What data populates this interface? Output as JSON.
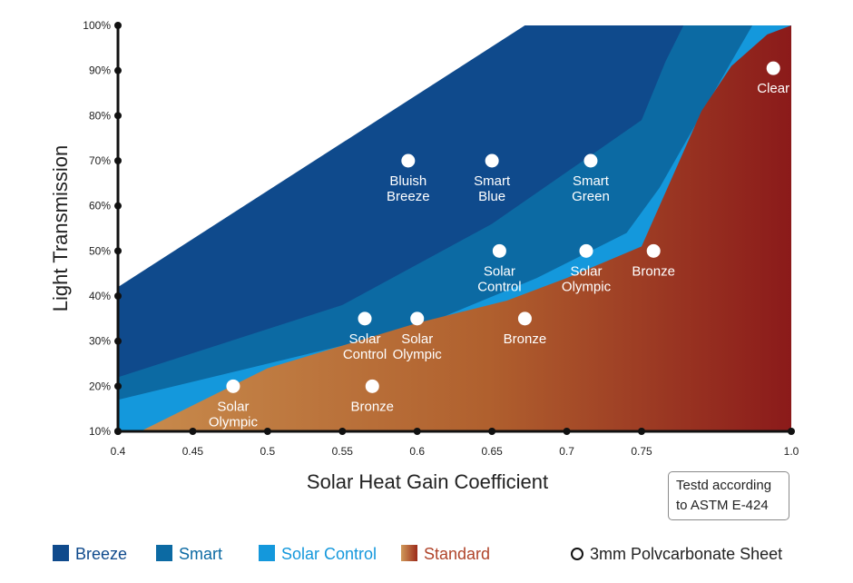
{
  "chart_data": {
    "type": "area",
    "xlabel": "Solar Heat Gain Coefficient",
    "ylabel": "Light Transmission",
    "xlim": [
      0.4,
      1.0
    ],
    "ylim": [
      10,
      100
    ],
    "xticks": [
      0.4,
      0.45,
      0.5,
      0.55,
      0.6,
      0.65,
      0.7,
      0.75,
      1.0
    ],
    "xtick_labels": [
      "0.4",
      "0.45",
      "0.5",
      "0.55",
      "0.6",
      "0.65",
      "0.7",
      "0.75",
      "1.0"
    ],
    "yticks": [
      10,
      20,
      30,
      40,
      50,
      60,
      70,
      80,
      90,
      100
    ],
    "ytick_labels": [
      "10%",
      "20%",
      "30%",
      "40%",
      "50%",
      "60%",
      "70%",
      "80%",
      "90%",
      "100%"
    ],
    "regions": [
      {
        "name": "Breeze",
        "color": "#0f4a8c",
        "boundary": [
          [
            0.4,
            42
          ],
          [
            0.672,
            100
          ],
          [
            1.0,
            100
          ]
        ]
      },
      {
        "name": "Smart",
        "color": "#0c6aa3",
        "boundary": [
          [
            0.4,
            22
          ],
          [
            0.55,
            38
          ],
          [
            0.65,
            56
          ],
          [
            0.75,
            79
          ],
          [
            0.79,
            92
          ],
          [
            0.82,
            100
          ],
          [
            1.0,
            100
          ]
        ]
      },
      {
        "name": "Solar Control",
        "color": "#1498dc",
        "boundary": [
          [
            0.4,
            17
          ],
          [
            0.5,
            25
          ],
          [
            0.6,
            33
          ],
          [
            0.68,
            44
          ],
          [
            0.74,
            54
          ],
          [
            0.78,
            64
          ],
          [
            0.9,
            92
          ],
          [
            0.935,
            100
          ],
          [
            1.0,
            100
          ]
        ]
      },
      {
        "name": "Standard",
        "color": "gradient",
        "gradient": [
          "#c78a4c",
          "#8b1a1a"
        ],
        "boundary": [
          [
            0.4,
            10
          ],
          [
            0.415,
            10
          ],
          [
            0.5,
            24
          ],
          [
            0.6,
            34
          ],
          [
            0.66,
            39
          ],
          [
            0.7,
            44
          ],
          [
            0.75,
            51
          ],
          [
            0.8,
            66
          ],
          [
            0.85,
            81
          ],
          [
            0.9,
            91
          ],
          [
            0.96,
            98
          ],
          [
            1.0,
            100
          ]
        ]
      }
    ],
    "points": [
      {
        "label": [
          "Solar",
          "Olympic"
        ],
        "x": 0.477,
        "y": 20
      },
      {
        "label": [
          "Bronze"
        ],
        "x": 0.57,
        "y": 20
      },
      {
        "label": [
          "Solar",
          "Control"
        ],
        "x": 0.565,
        "y": 35
      },
      {
        "label": [
          "Solar",
          "Olympic"
        ],
        "x": 0.6,
        "y": 35
      },
      {
        "label": [
          "Bronze"
        ],
        "x": 0.672,
        "y": 35
      },
      {
        "label": [
          "Solar",
          "Control"
        ],
        "x": 0.655,
        "y": 50
      },
      {
        "label": [
          "Solar",
          "Olympic"
        ],
        "x": 0.713,
        "y": 50
      },
      {
        "label": [
          "Bronze"
        ],
        "x": 0.77,
        "y": 50
      },
      {
        "label": [
          "Bluish",
          "Breeze"
        ],
        "x": 0.594,
        "y": 70
      },
      {
        "label": [
          "Smart",
          "Blue"
        ],
        "x": 0.65,
        "y": 70
      },
      {
        "label": [
          "Smart",
          "Green"
        ],
        "x": 0.716,
        "y": 70
      },
      {
        "label": [
          "Clear"
        ],
        "x": 0.97,
        "y": 90.5
      }
    ],
    "legend": [
      {
        "name": "Breeze",
        "color": "#0f4a8c",
        "text_color": "#0f4a8c"
      },
      {
        "name": "Smart",
        "color": "#0c6aa3",
        "text_color": "#0c6aa3"
      },
      {
        "name": "Solar Control",
        "color": "#1498dc",
        "text_color": "#1498dc"
      },
      {
        "name": "Standard",
        "color": "gradient",
        "text_color": "#b0442a"
      }
    ],
    "legend_marker": "3mm Polvcarbonate Sheet",
    "note": [
      "Testd according",
      "to ASTM E-424"
    ]
  }
}
